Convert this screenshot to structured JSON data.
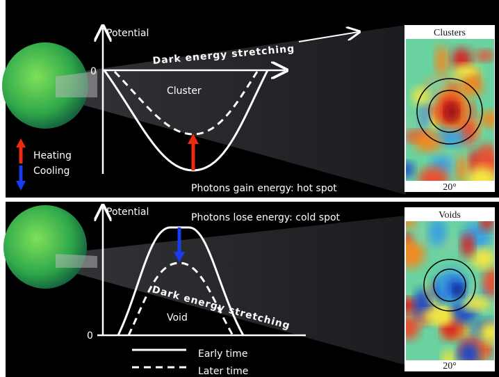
{
  "top_panel": {
    "axis_label": "Potential",
    "origin_label": "0",
    "stretch_label": "Dark energy stretching",
    "structure_label": "Cluster",
    "legend": {
      "heating": "Heating",
      "cooling": "Cooling"
    },
    "caption": "Photons gain energy: hot spot",
    "map_title": "Clusters",
    "map_scale": "20°"
  },
  "bottom_panel": {
    "axis_label": "Potential",
    "origin_label": "0",
    "stretch_label": "Dark energy stretching",
    "structure_label": "Void",
    "legend": {
      "early": "Early time",
      "later": "Later time"
    },
    "caption": "Photons lose energy: cold spot",
    "map_title": "Voids",
    "map_scale": "20°"
  }
}
